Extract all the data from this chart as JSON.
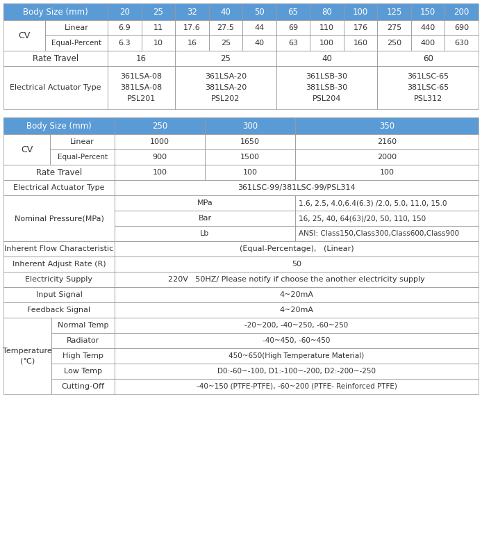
{
  "header_color": "#5B9BD5",
  "header_text_color": "#FFFFFF",
  "border_color": "#999999",
  "text_color": "#333333",
  "fig_bg": "#FFFFFF",
  "t1_header": [
    "Body Size (mm)",
    "20",
    "25",
    "32",
    "40",
    "50",
    "65",
    "80",
    "100",
    "125",
    "150",
    "200"
  ],
  "t1_linear": [
    "6.9",
    "11",
    "17.6",
    "27.5",
    "44",
    "69",
    "110",
    "176",
    "275",
    "440",
    "690"
  ],
  "t1_ep": [
    "6.3",
    "10",
    "16",
    "25",
    "40",
    "63",
    "100",
    "160",
    "250",
    "400",
    "630"
  ],
  "t1_rt_groups": [
    [
      0,
      2,
      "16"
    ],
    [
      2,
      5,
      "25"
    ],
    [
      5,
      8,
      "40"
    ],
    [
      8,
      11,
      "60"
    ]
  ],
  "t1_ea_groups": [
    [
      0,
      2,
      "361LSA-08\n381LSA-08\nPSL201"
    ],
    [
      2,
      5,
      "361LSA-20\n381LSA-20\nPSL202"
    ],
    [
      5,
      8,
      "361LSB-30\n381LSB-30\nPSL204"
    ],
    [
      8,
      11,
      "361LSC-65\n381LSC-65\nPSL312"
    ]
  ],
  "t2_header": [
    "Body Size (mm)",
    "250",
    "300",
    "350"
  ],
  "t2_cv_linear": [
    "1000",
    "1650",
    "2160"
  ],
  "t2_cv_ep": [
    "900",
    "1500",
    "2000"
  ],
  "t2_rt": [
    "100",
    "100",
    "100"
  ],
  "t2_eat": "361LSC-99/381LSC-99/PSL314",
  "t2_nom_label": "Nominal Pressure(MPa)",
  "t2_nom_rows": [
    [
      "MPa",
      "1.6, 2.5, 4.0,6.4(6.3) /2.0, 5.0, 11.0, 15.0"
    ],
    [
      "Bar",
      "16, 25, 40, 64(63)/20, 50, 110, 150"
    ],
    [
      "Lb",
      "ANSI: Class150,Class300,Class600,Class900"
    ]
  ],
  "t2_flow": "(Equal-Percentage),   (Linear)",
  "t2_adjust": "50",
  "t2_elec": "220V   50HZ/ Please notify if choose the another electricity supply",
  "t2_input": "4~20mA",
  "t2_feedback": "4~20mA",
  "t2_temp_label": "Temperature\n(℃)",
  "t2_temp_rows": [
    [
      "Normal Temp",
      "-20~200, -40~250, -60~250"
    ],
    [
      "Radiator",
      "-40~450, -60~450"
    ],
    [
      "High Temp",
      "450~650(High Temperature Material)"
    ],
    [
      "Low Temp",
      "D0:-60~-100, D1:-100~-200, D2:-200~-250"
    ],
    [
      "Cutting-Off",
      "-40~150 (PTFE-PTFE), -60~200 (PTFE- Reinforced PTFE)"
    ]
  ]
}
